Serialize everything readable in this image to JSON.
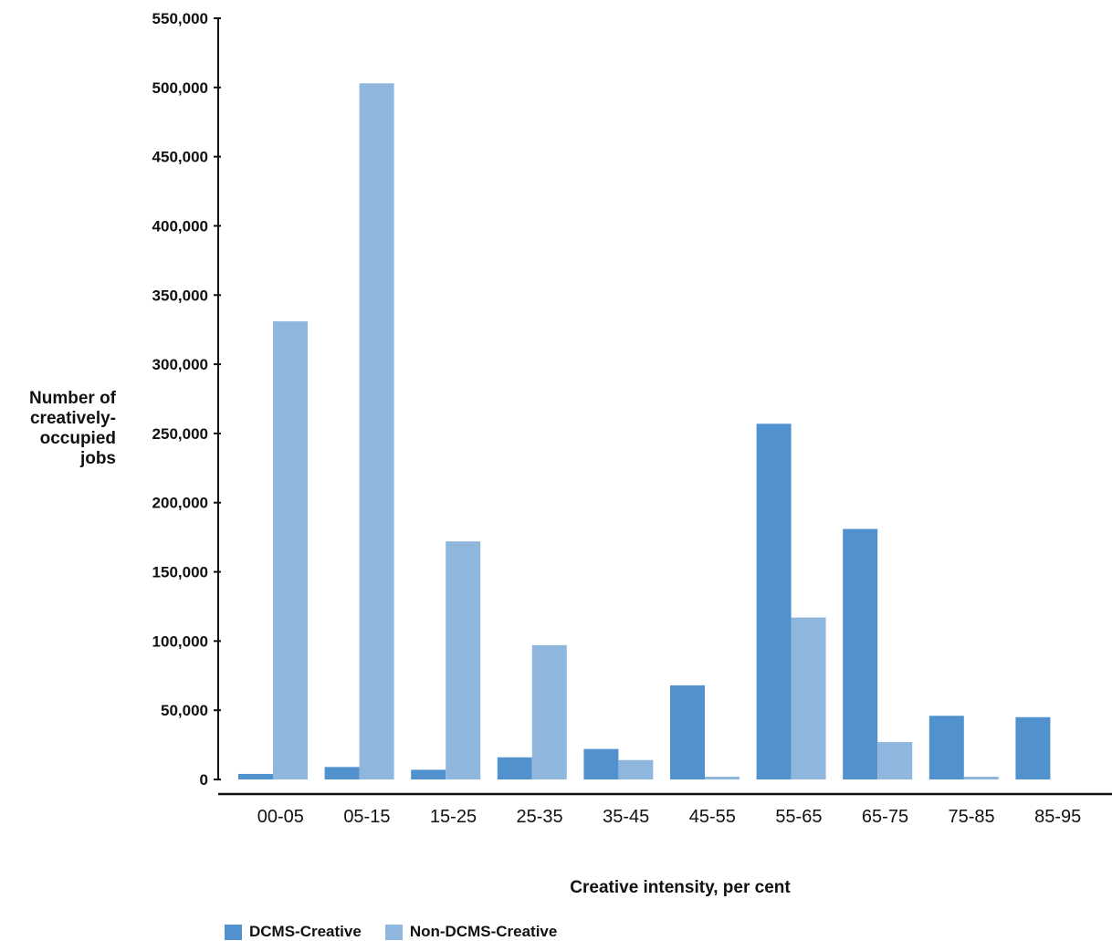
{
  "chart_data": {
    "type": "bar",
    "title": "",
    "xlabel": "Creative intensity, per cent",
    "ylabel_lines": [
      "Number of",
      "creatively-",
      "occupied",
      "jobs"
    ],
    "ylim": [
      0,
      550000
    ],
    "yticks": [
      0,
      50000,
      100000,
      150000,
      200000,
      250000,
      300000,
      350000,
      400000,
      450000,
      500000,
      550000
    ],
    "ytick_labels": [
      "0",
      "50,000",
      "100,000",
      "150,000",
      "200,000",
      "250,000",
      "300,000",
      "350,000",
      "400,000",
      "450,000",
      "500,000",
      "550,000"
    ],
    "categories": [
      "00-05",
      "05-15",
      "15-25",
      "25-35",
      "35-45",
      "45-55",
      "55-65",
      "65-75",
      "75-85",
      "85-95"
    ],
    "series": [
      {
        "name": "DCMS-Creative",
        "color": "#5192CE",
        "values": [
          4000,
          9000,
          7000,
          16000,
          22000,
          68000,
          257000,
          181000,
          46000,
          45000
        ]
      },
      {
        "name": "Non-DCMS-Creative",
        "color": "#8FB7DE",
        "values": [
          331000,
          503000,
          172000,
          97000,
          14000,
          2000,
          117000,
          27000,
          2000,
          0
        ]
      }
    ],
    "legend_position": "bottom-left",
    "grid": false
  }
}
